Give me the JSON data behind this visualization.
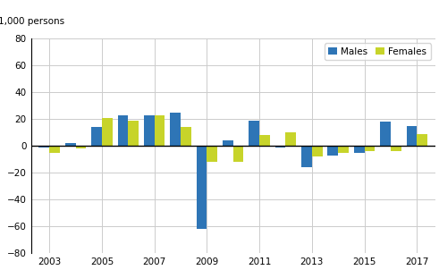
{
  "years": [
    2003,
    2004,
    2005,
    2006,
    2007,
    2008,
    2009,
    2010,
    2011,
    2012,
    2013,
    2014,
    2015,
    2016,
    2017
  ],
  "males": [
    -1,
    2,
    14,
    23,
    23,
    25,
    -62,
    4,
    19,
    -1,
    -16,
    -7,
    -5,
    18,
    15
  ],
  "females": [
    -5,
    -2,
    21,
    19,
    23,
    14,
    -12,
    -12,
    8,
    10,
    -8,
    -5,
    -4,
    -4,
    9
  ],
  "male_color": "#2e75b6",
  "female_color": "#c7d42a",
  "ylim": [
    -80,
    80
  ],
  "yticks": [
    -80,
    -60,
    -40,
    -20,
    0,
    20,
    40,
    60,
    80
  ],
  "ylabel": "1,000 persons",
  "xtick_years": [
    2003,
    2005,
    2007,
    2009,
    2011,
    2013,
    2015,
    2017
  ],
  "legend_males": "Males",
  "legend_females": "Females",
  "background_color": "#ffffff",
  "grid_color": "#cccccc",
  "bar_width": 0.4
}
